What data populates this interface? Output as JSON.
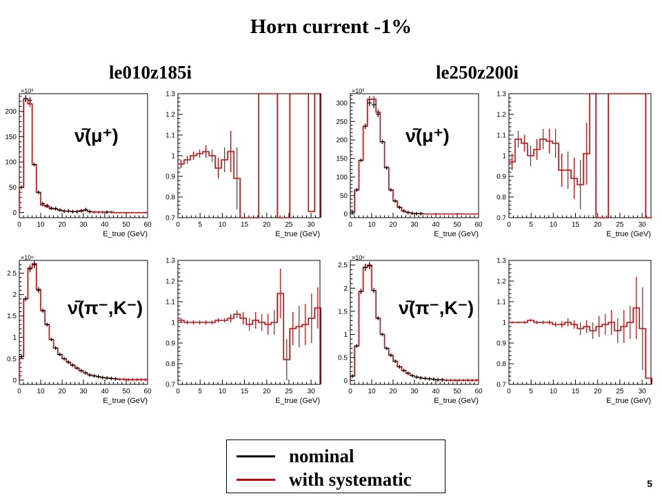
{
  "slide": {
    "title": "Horn current -1%",
    "left_column_title": "le010z185i",
    "right_column_title": "le250z200i",
    "page_number": "5"
  },
  "legend": {
    "items": [
      {
        "label": "nominal",
        "color": "#000000"
      },
      {
        "label": "with systematic",
        "color": "#dd0000"
      }
    ]
  },
  "colors": {
    "nominal": "#000000",
    "systematic": "#dd0000"
  },
  "chart_data": [
    {
      "type": "histogram",
      "id": "le010-mu-spectrum",
      "annotation": "ν̄(μ⁺)",
      "xlabel": "E_true (GeV)",
      "xlim": [
        0,
        60
      ],
      "ylim": [
        -10,
        235
      ],
      "exponent": "×10³",
      "xticks": [
        0,
        10,
        20,
        30,
        40,
        50,
        60
      ],
      "yticks": [
        0,
        50,
        100,
        150,
        200
      ],
      "bin_width": 2,
      "nominal_points": [
        {
          "x": 1,
          "y": 50
        },
        {
          "x": 3,
          "y": 225
        },
        {
          "x": 5,
          "y": 222
        },
        {
          "x": 7,
          "y": 95
        },
        {
          "x": 9,
          "y": 40
        },
        {
          "x": 11,
          "y": 18
        },
        {
          "x": 13,
          "y": 14
        },
        {
          "x": 15,
          "y": 9
        },
        {
          "x": 17,
          "y": 8
        },
        {
          "x": 19,
          "y": 5
        },
        {
          "x": 21,
          "y": 3
        },
        {
          "x": 23,
          "y": 3
        },
        {
          "x": 25,
          "y": 2
        },
        {
          "x": 27,
          "y": 2
        },
        {
          "x": 29,
          "y": 4
        },
        {
          "x": 31,
          "y": 6
        },
        {
          "x": 33,
          "y": 2
        },
        {
          "x": 41,
          "y": 1
        }
      ],
      "systematic_values": [
        50,
        225,
        215,
        95,
        40,
        15,
        12,
        8,
        7,
        5,
        3,
        3,
        2,
        2,
        3,
        5,
        2,
        1,
        1,
        1,
        1,
        1,
        0,
        0,
        0,
        0,
        0,
        0,
        0,
        0
      ]
    },
    {
      "type": "histogram",
      "id": "le010-mu-ratio",
      "xlabel": "E_true (GeV)",
      "xlim": [
        0,
        32
      ],
      "ylim": [
        0.7,
        1.3
      ],
      "xticks": [
        0,
        5,
        10,
        15,
        20,
        25,
        30
      ],
      "yticks": [
        0.7,
        0.8,
        0.9,
        1,
        1.1,
        1.2,
        1.3
      ],
      "bin_width": 1.4,
      "values": [
        0.96,
        0.98,
        1.0,
        1.01,
        1.02,
        1.0,
        0.94,
        0.98,
        1.02,
        0.89,
        0.7,
        0.7,
        0.7,
        1.3,
        1.3,
        1.3,
        0.7,
        0.7,
        1.3,
        1.3,
        1.3,
        0.73,
        1.3
      ],
      "errors": [
        0.02,
        0.02,
        0.02,
        0.02,
        0.03,
        0.03,
        0.05,
        0.06,
        0.1,
        0.15,
        0,
        0,
        0,
        0,
        0,
        0,
        0,
        0,
        0,
        0,
        0,
        0,
        0
      ]
    },
    {
      "type": "histogram",
      "id": "le250-mu-spectrum",
      "annotation": "ν̄(μ⁺)",
      "xlabel": "E_true (GeV)",
      "xlim": [
        0,
        60
      ],
      "ylim": [
        -10,
        325
      ],
      "exponent": "×10³",
      "xticks": [
        0,
        10,
        20,
        30,
        40,
        50,
        60
      ],
      "yticks": [
        0,
        50,
        100,
        150,
        200,
        250,
        300
      ],
      "bin_width": 2,
      "nominal_points": [
        {
          "x": 1,
          "y": 5
        },
        {
          "x": 3,
          "y": 65
        },
        {
          "x": 5,
          "y": 145
        },
        {
          "x": 7,
          "y": 237
        },
        {
          "x": 9,
          "y": 300
        },
        {
          "x": 11,
          "y": 295
        },
        {
          "x": 13,
          "y": 270
        },
        {
          "x": 15,
          "y": 195
        },
        {
          "x": 17,
          "y": 125
        },
        {
          "x": 19,
          "y": 65
        },
        {
          "x": 21,
          "y": 35
        },
        {
          "x": 23,
          "y": 18
        },
        {
          "x": 25,
          "y": 8
        },
        {
          "x": 27,
          "y": 4
        },
        {
          "x": 29,
          "y": 2
        },
        {
          "x": 31,
          "y": 1
        },
        {
          "x": 33,
          "y": 1
        }
      ],
      "systematic_values": [
        5,
        65,
        145,
        237,
        310,
        310,
        275,
        195,
        125,
        65,
        35,
        18,
        8,
        4,
        2,
        1,
        1,
        0,
        0,
        0,
        0,
        0,
        0,
        0,
        0,
        0,
        0,
        0,
        0,
        0
      ]
    },
    {
      "type": "histogram",
      "id": "le250-mu-ratio",
      "xlabel": "E_true (GeV)",
      "xlim": [
        0,
        32
      ],
      "ylim": [
        0.7,
        1.3
      ],
      "xticks": [
        0,
        5,
        10,
        15,
        20,
        25,
        30
      ],
      "yticks": [
        0.7,
        0.8,
        0.9,
        1,
        1.1,
        1.2,
        1.3
      ],
      "bin_width": 1.4,
      "values": [
        0.97,
        1.08,
        1.06,
        1.0,
        1.03,
        1.08,
        1.07,
        1.06,
        0.93,
        0.93,
        0.89,
        0.86,
        1.01,
        1.3,
        0.7,
        0.7,
        1.3,
        1.3,
        1.3,
        1.3,
        1.3,
        1.3,
        0.7
      ],
      "errors": [
        0.04,
        0.04,
        0.04,
        0.05,
        0.05,
        0.05,
        0.06,
        0.07,
        0.08,
        0.09,
        0.1,
        0.12,
        0.15,
        0,
        0,
        0,
        0,
        0,
        0,
        0,
        0,
        0,
        0
      ]
    },
    {
      "type": "histogram",
      "id": "le010-pik-spectrum",
      "annotation": "ν̄(π⁻,K⁻)",
      "xlabel": "E_true (GeV)",
      "xlim": [
        0,
        60
      ],
      "ylim": [
        -0.1,
        2.8
      ],
      "exponent": "×10⁶",
      "xticks": [
        0,
        10,
        20,
        30,
        40,
        50,
        60
      ],
      "yticks": [
        0,
        0.5,
        1,
        1.5,
        2,
        2.5
      ],
      "bin_width": 2,
      "nominal_points": [
        {
          "x": 1,
          "y": 0.55
        },
        {
          "x": 3,
          "y": 1.9
        },
        {
          "x": 5,
          "y": 2.6
        },
        {
          "x": 7,
          "y": 2.7
        },
        {
          "x": 9,
          "y": 2.1
        },
        {
          "x": 11,
          "y": 1.62
        },
        {
          "x": 13,
          "y": 1.3
        },
        {
          "x": 15,
          "y": 0.95
        },
        {
          "x": 17,
          "y": 0.75
        },
        {
          "x": 19,
          "y": 0.6
        },
        {
          "x": 21,
          "y": 0.5
        },
        {
          "x": 23,
          "y": 0.42
        },
        {
          "x": 25,
          "y": 0.35
        },
        {
          "x": 27,
          "y": 0.28
        },
        {
          "x": 29,
          "y": 0.22
        },
        {
          "x": 31,
          "y": 0.17
        },
        {
          "x": 33,
          "y": 0.12
        },
        {
          "x": 35,
          "y": 0.1
        },
        {
          "x": 37,
          "y": 0.08
        },
        {
          "x": 39,
          "y": 0.06
        },
        {
          "x": 41,
          "y": 0.05
        },
        {
          "x": 43,
          "y": 0.04
        },
        {
          "x": 45,
          "y": 0.03
        }
      ],
      "systematic_values": [
        0.55,
        1.9,
        2.62,
        2.72,
        2.12,
        1.63,
        1.3,
        0.95,
        0.75,
        0.6,
        0.5,
        0.42,
        0.35,
        0.28,
        0.22,
        0.17,
        0.12,
        0.1,
        0.08,
        0.06,
        0.05,
        0.04,
        0.03,
        0.02,
        0.02,
        0.01,
        0.01,
        0.01,
        0.01,
        0.01
      ]
    },
    {
      "type": "histogram",
      "id": "le010-pik-ratio",
      "xlabel": "E_true (GeV)",
      "xlim": [
        0,
        32
      ],
      "ylim": [
        0.7,
        1.3
      ],
      "xticks": [
        0,
        5,
        10,
        15,
        20,
        25,
        30
      ],
      "yticks": [
        0.7,
        0.8,
        0.9,
        1,
        1.1,
        1.2,
        1.3
      ],
      "bin_width": 1.4,
      "values": [
        1.01,
        1.0,
        1.0,
        1.0,
        1.0,
        1.0,
        1.01,
        1.01,
        1.02,
        1.04,
        1.02,
        0.99,
        1.01,
        1.0,
        0.99,
        1.0,
        1.14,
        0.82,
        0.97,
        0.98,
        0.99,
        1.02,
        1.07
      ],
      "errors": [
        0.01,
        0.01,
        0.01,
        0.01,
        0.01,
        0.01,
        0.01,
        0.01,
        0.02,
        0.02,
        0.03,
        0.03,
        0.04,
        0.04,
        0.05,
        0.06,
        0.12,
        0.1,
        0.08,
        0.1,
        0.1,
        0.12,
        0.1
      ]
    },
    {
      "type": "histogram",
      "id": "le250-pik-spectrum",
      "annotation": "ν̄(π⁻,K⁻)",
      "xlabel": "E_true (GeV)",
      "xlim": [
        0,
        60
      ],
      "ylim": [
        -0.08,
        2.6
      ],
      "exponent": "×10⁶",
      "xticks": [
        0,
        10,
        20,
        30,
        40,
        50,
        60
      ],
      "yticks": [
        0,
        0.5,
        1,
        1.5,
        2,
        2.5
      ],
      "bin_width": 2,
      "nominal_points": [
        {
          "x": 1,
          "y": 0.1
        },
        {
          "x": 3,
          "y": 0.75
        },
        {
          "x": 5,
          "y": 1.93
        },
        {
          "x": 7,
          "y": 2.45
        },
        {
          "x": 9,
          "y": 2.48
        },
        {
          "x": 11,
          "y": 1.95
        },
        {
          "x": 13,
          "y": 1.35
        },
        {
          "x": 15,
          "y": 1.0
        },
        {
          "x": 17,
          "y": 0.7
        },
        {
          "x": 19,
          "y": 0.55
        },
        {
          "x": 21,
          "y": 0.42
        },
        {
          "x": 23,
          "y": 0.3
        },
        {
          "x": 25,
          "y": 0.22
        },
        {
          "x": 27,
          "y": 0.16
        },
        {
          "x": 29,
          "y": 0.11
        },
        {
          "x": 31,
          "y": 0.08
        },
        {
          "x": 33,
          "y": 0.06
        },
        {
          "x": 35,
          "y": 0.05
        },
        {
          "x": 37,
          "y": 0.04
        },
        {
          "x": 39,
          "y": 0.03
        },
        {
          "x": 41,
          "y": 0.02
        },
        {
          "x": 43,
          "y": 0.02
        }
      ],
      "systematic_values": [
        0.1,
        0.75,
        1.93,
        2.45,
        2.5,
        1.95,
        1.35,
        1.0,
        0.7,
        0.55,
        0.42,
        0.3,
        0.22,
        0.16,
        0.11,
        0.08,
        0.06,
        0.05,
        0.04,
        0.03,
        0.02,
        0.02,
        0.01,
        0.01,
        0.01,
        0.01,
        0.01,
        0.01,
        0.01,
        0.01
      ]
    },
    {
      "type": "histogram",
      "id": "le250-pik-ratio",
      "xlabel": "E_true (GeV)",
      "xlim": [
        0,
        32
      ],
      "ylim": [
        0.7,
        1.3
      ],
      "xticks": [
        0,
        5,
        10,
        15,
        20,
        25,
        30
      ],
      "yticks": [
        0.7,
        0.8,
        0.9,
        1,
        1.1,
        1.2,
        1.3
      ],
      "bin_width": 1.4,
      "values": [
        1.0,
        1.0,
        1.0,
        1.01,
        1.0,
        1.0,
        1.0,
        0.99,
        0.99,
        1.0,
        0.99,
        0.97,
        0.98,
        0.96,
        0.98,
        0.99,
        1.0,
        0.96,
        0.98,
        1.0,
        1.07,
        0.97,
        0.73
      ],
      "errors": [
        0.005,
        0.005,
        0.006,
        0.007,
        0.008,
        0.009,
        0.01,
        0.012,
        0.015,
        0.02,
        0.02,
        0.03,
        0.03,
        0.04,
        0.05,
        0.05,
        0.06,
        0.06,
        0.08,
        0.08,
        0.15,
        0.2,
        0.0
      ]
    }
  ]
}
